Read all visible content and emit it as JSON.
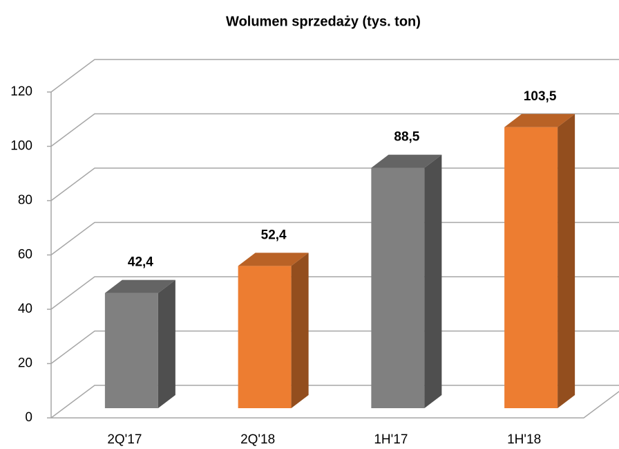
{
  "chart_data": {
    "type": "bar3d",
    "title": "Wolumen sprzedaży (tys. ton)",
    "categories": [
      "2Q'17",
      "2Q'18",
      "1H'17",
      "1H'18"
    ],
    "values": [
      42.4,
      52.4,
      88.5,
      103.5
    ],
    "value_labels": [
      "42,4",
      "52,4",
      "88,5",
      "103,5"
    ],
    "colors": [
      "#808080",
      "#ed7d31",
      "#808080",
      "#ed7d31"
    ],
    "ylim": [
      0,
      120
    ],
    "yticks": [
      0,
      20,
      40,
      60,
      80,
      100,
      120
    ],
    "grid": true
  }
}
